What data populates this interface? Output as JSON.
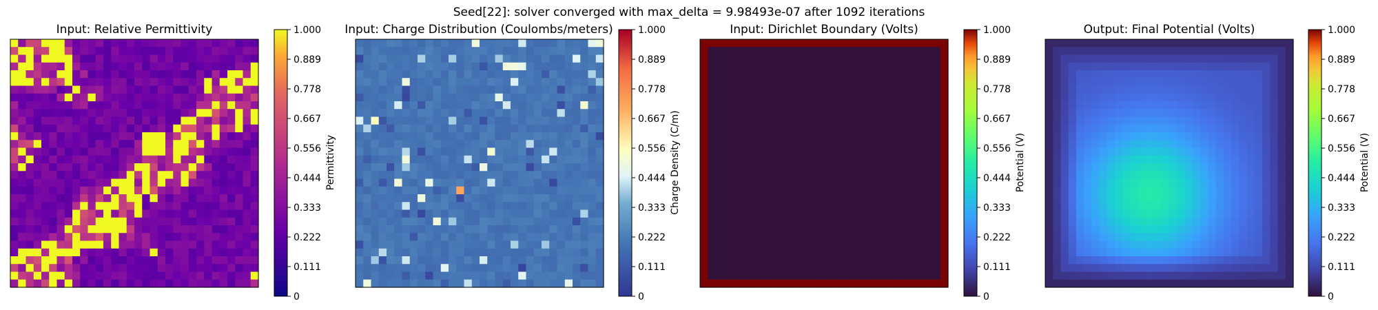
{
  "figure": {
    "suptitle": "Seed[22]: solver converged with max_delta = 9.98493e-07 after 1092 iterations"
  },
  "panels": [
    {
      "title": "Input: Relative Permittivity",
      "colorbar_label": "Permittivity",
      "colormap": "plasma"
    },
    {
      "title": "Input: Charge Distribution (Coulombs/meters)",
      "colorbar_label": "Charge Density (C/m)",
      "colormap": "RdYlBu_r"
    },
    {
      "title": "Input: Dirichlet Boundary (Volts)",
      "colorbar_label": "Potential (V)",
      "colormap": "turbo"
    },
    {
      "title": "Output: Final Potential (Volts)",
      "colorbar_label": "Potential (V)",
      "colormap": "turbo"
    }
  ],
  "colorbar_ticks": [
    "0",
    "0.111",
    "0.222",
    "0.333",
    "0.444",
    "0.556",
    "0.667",
    "0.778",
    "0.889",
    "1.000"
  ],
  "chart_data": [
    {
      "type": "heatmap",
      "title": "Input: Relative Permittivity",
      "colorbar_label": "Permittivity",
      "colormap": "plasma",
      "vmin": 0,
      "vmax": 1,
      "grid_size": [
        32,
        32
      ],
      "description_values": {
        "background_level": 0.2,
        "high_cells": 1.0,
        "mid_cells": 0.55
      }
    },
    {
      "type": "heatmap",
      "title": "Input: Charge Distribution (Coulombs/meters)",
      "colorbar_label": "Charge Density (C/m)",
      "colormap": "RdYlBu_r",
      "vmin": 0,
      "vmax": 1,
      "grid_size": [
        32,
        32
      ],
      "description_values": {
        "background_level": 0.2,
        "max_cell": 0.72,
        "min_cell": 0.05
      }
    },
    {
      "type": "heatmap",
      "title": "Input: Dirichlet Boundary (Volts)",
      "colorbar_label": "Potential (V)",
      "colormap": "turbo",
      "vmin": 0,
      "vmax": 1,
      "grid_size": [
        32,
        32
      ],
      "boundary_value": 1.0,
      "interior_value": 0.0
    },
    {
      "type": "heatmap",
      "title": "Output: Final Potential (Volts)",
      "colorbar_label": "Potential (V)",
      "colormap": "turbo",
      "vmin": 0,
      "vmax": 1,
      "grid_size": [
        32,
        32
      ],
      "peak_value": 0.45,
      "edge_value": 0.04
    }
  ]
}
